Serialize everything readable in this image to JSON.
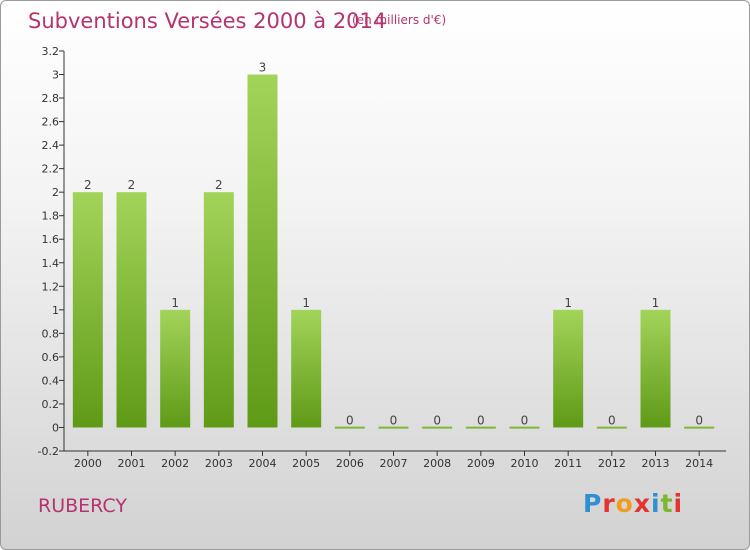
{
  "header": {
    "title": "Subventions Versées 2000 à 2014",
    "subtitle": "(en milliers d'€)"
  },
  "footer": {
    "commune": "RUBERCY",
    "logo_text": "Proxiti",
    "logo_colors": [
      "#2e8fd1",
      "#e3342f",
      "#f29c1f",
      "#e3342f",
      "#2e8fd1",
      "#7cb82f",
      "#e3342f"
    ]
  },
  "colors": {
    "bar_light": "#a3d45a",
    "bar_dark": "#5f9a17",
    "axis": "#333333",
    "grid": "#888888"
  },
  "chart_data": {
    "type": "bar",
    "categories": [
      "2000",
      "2001",
      "2002",
      "2003",
      "2004",
      "2005",
      "2006",
      "2007",
      "2008",
      "2009",
      "2010",
      "2011",
      "2012",
      "2013",
      "2014"
    ],
    "values": [
      2,
      2,
      1,
      2,
      3,
      1,
      0,
      0,
      0,
      0,
      0,
      1,
      0,
      1,
      0
    ],
    "data_labels": [
      "2",
      "2",
      "1",
      "2",
      "3",
      "1",
      "0",
      "0",
      "0",
      "0",
      "0",
      "1",
      "0",
      "1",
      "0"
    ],
    "title": "Subventions Versées 2000 à 2014",
    "xlabel": "",
    "ylabel": "",
    "ylim": [
      -0.2,
      3.2
    ],
    "yticks": [
      -0.2,
      0,
      0.2,
      0.4,
      0.6,
      0.8,
      1,
      1.2,
      1.4,
      1.6,
      1.8,
      2,
      2.2,
      2.4,
      2.6,
      2.8,
      3,
      3.2
    ],
    "ytick_labels": [
      "-0.2",
      "0",
      "0.2",
      "0.4",
      "0.6",
      "0.8",
      "1",
      "1.2",
      "1.4",
      "1.6",
      "1.8",
      "2",
      "2.2",
      "2.4",
      "2.6",
      "2.8",
      "3",
      "3.2"
    ],
    "grid": false
  }
}
